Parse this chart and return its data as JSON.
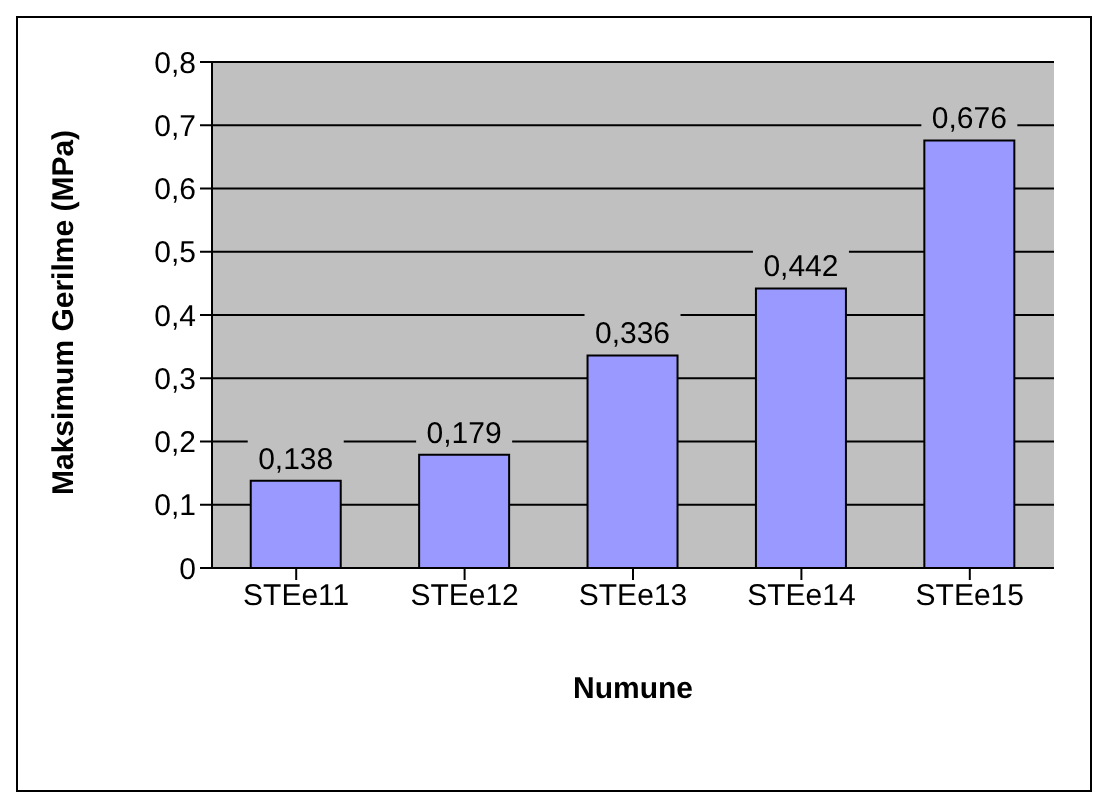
{
  "chart_data": {
    "type": "bar",
    "xlabel": "Numune",
    "ylabel": "Maksimum Gerilme (MPa)",
    "categories": [
      "STEe11",
      "STEe12",
      "STEe13",
      "STEe14",
      "STEe15"
    ],
    "values": [
      0.138,
      0.179,
      0.336,
      0.442,
      0.676
    ],
    "value_labels": [
      "0,138",
      "0,179",
      "0,336",
      "0,442",
      "0,676"
    ],
    "color": "#9999ff",
    "ylim": [
      0,
      0.8
    ],
    "yticks": [
      0,
      {
        "value": 0.1,
        "label": "0,1"
      },
      {
        "value": 0.2,
        "label": "0,2"
      },
      {
        "value": 0.3,
        "label": "0,3"
      },
      {
        "value": 0.4,
        "label": "0,4"
      },
      {
        "value": 0.5,
        "label": "0,5"
      },
      {
        "value": 0.6,
        "label": "0,6"
      },
      {
        "value": 0.7,
        "label": "0,7"
      },
      {
        "value": 0.8,
        "label": "0,8"
      }
    ],
    "grid": "y",
    "legend": false
  }
}
